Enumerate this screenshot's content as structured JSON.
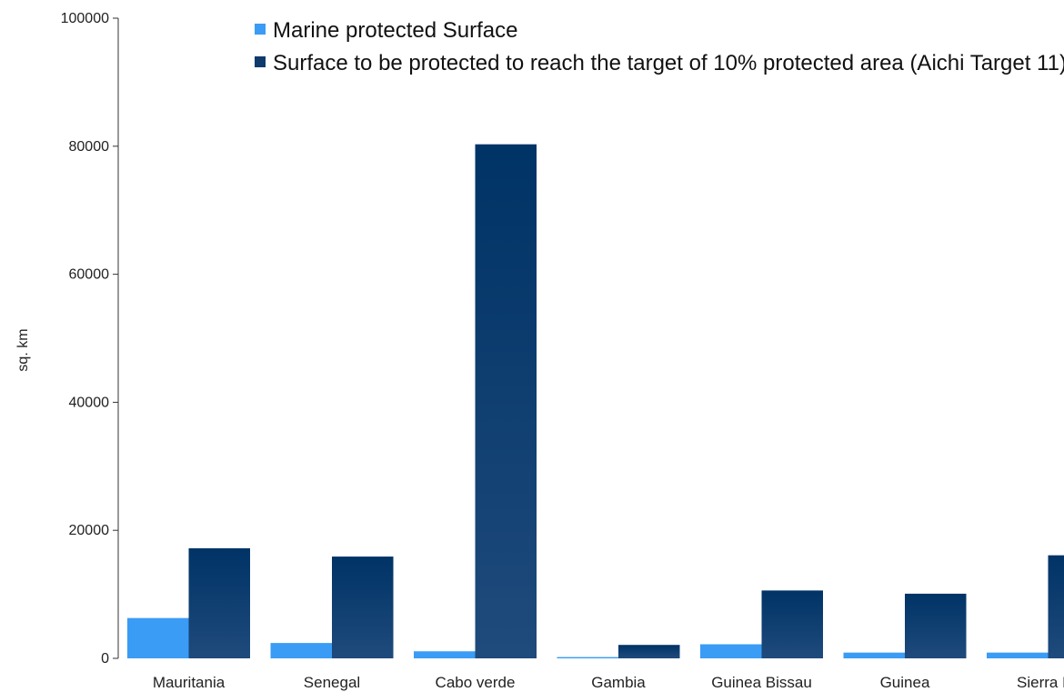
{
  "chart_data": {
    "type": "bar",
    "ylabel": "sq. km",
    "xlabel": "",
    "ylim": [
      0,
      100000
    ],
    "yticks": [
      0,
      20000,
      40000,
      60000,
      80000,
      100000
    ],
    "grid": false,
    "legend_position": "top",
    "categories": [
      "Mauritania",
      "Senegal",
      "Cabo verde",
      "Gambia",
      "Guinea Bissau",
      "Guinea",
      "Sierra Le"
    ],
    "series": [
      {
        "name": "Marine protected Surface",
        "color": "#3a9cf5",
        "values": [
          6300,
          2400,
          1100,
          200,
          2200,
          900,
          900
        ]
      },
      {
        "name": "Surface to be protected to reach the target of 10% protected area (Aichi Target 11)",
        "color": "#0e3a6c",
        "values": [
          17200,
          15900,
          80300,
          2100,
          10600,
          10100,
          16100
        ]
      }
    ]
  }
}
